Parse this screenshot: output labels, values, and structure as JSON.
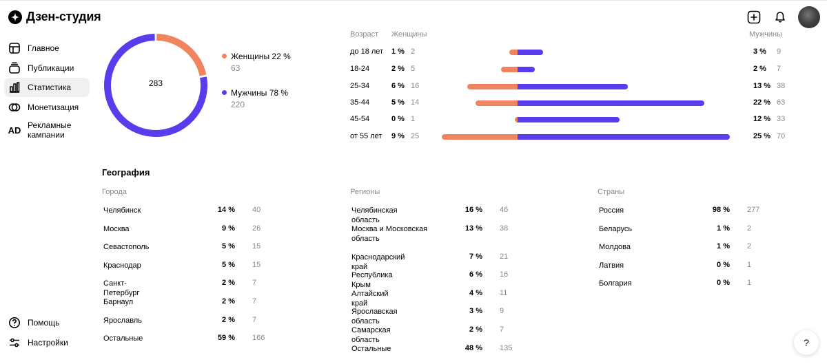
{
  "app": {
    "title": "Дзен-студия"
  },
  "sidebar": {
    "items": [
      {
        "label": "Главное",
        "icon": "home-icon"
      },
      {
        "label": "Публикации",
        "icon": "publications-icon"
      },
      {
        "label": "Статистика",
        "icon": "stats-icon",
        "active": true
      },
      {
        "label": "Монетизация",
        "icon": "monetization-icon"
      },
      {
        "label": "Рекламные кампании",
        "icon": "ad-icon",
        "icon_text": "AD"
      }
    ],
    "bottom": [
      {
        "label": "Помощь",
        "icon": "help-icon"
      },
      {
        "label": "Настройки",
        "icon": "settings-icon"
      }
    ]
  },
  "gender": {
    "total": "283",
    "women": {
      "label": "Женщины 22 %",
      "count": "63",
      "fraction": 0.22,
      "color": "#f0845e"
    },
    "men": {
      "label": "Мужчины 78 %",
      "count": "220",
      "fraction": 0.78,
      "color": "#5b3cec"
    }
  },
  "age": {
    "headers": {
      "age": "Возраст",
      "women": "Женщины",
      "men": "Мужчины"
    },
    "rows": [
      {
        "label": "до 18 лет",
        "w_pct": "1 %",
        "w_cnt": "2",
        "m_pct": "3 %",
        "m_cnt": "9",
        "w_val": 1,
        "m_val": 3
      },
      {
        "label": "18-24",
        "w_pct": "2 %",
        "w_cnt": "5",
        "m_pct": "2 %",
        "m_cnt": "7",
        "w_val": 2,
        "m_val": 2
      },
      {
        "label": "25-34",
        "w_pct": "6 %",
        "w_cnt": "16",
        "m_pct": "13 %",
        "m_cnt": "38",
        "w_val": 6,
        "m_val": 13
      },
      {
        "label": "35-44",
        "w_pct": "5 %",
        "w_cnt": "14",
        "m_pct": "22 %",
        "m_cnt": "63",
        "w_val": 5,
        "m_val": 22
      },
      {
        "label": "45-54",
        "w_pct": "0 %",
        "w_cnt": "1",
        "m_pct": "12 %",
        "m_cnt": "33",
        "w_val": 0.3,
        "m_val": 12
      },
      {
        "label": "от 55 лет",
        "w_pct": "9 %",
        "w_cnt": "25",
        "m_pct": "25 %",
        "m_cnt": "70",
        "w_val": 9,
        "m_val": 25
      }
    ]
  },
  "geography": {
    "title": "География",
    "cities": {
      "heading": "Города",
      "rows": [
        {
          "name": "Челябинск",
          "pct": "14 %",
          "cnt": "40"
        },
        {
          "name": "Москва",
          "pct": "9 %",
          "cnt": "26"
        },
        {
          "name": "Севастополь",
          "pct": "5 %",
          "cnt": "15"
        },
        {
          "name": "Краснодар",
          "pct": "5 %",
          "cnt": "15"
        },
        {
          "name": "Санкт-Петербург",
          "pct": "2 %",
          "cnt": "7"
        },
        {
          "name": "Барнаул",
          "pct": "2 %",
          "cnt": "7"
        },
        {
          "name": "Ярославль",
          "pct": "2 %",
          "cnt": "7"
        },
        {
          "name": "Остальные",
          "pct": "59 %",
          "cnt": "166"
        }
      ]
    },
    "regions": {
      "heading": "Регионы",
      "rows": [
        {
          "name": "Челябинская область",
          "pct": "16 %",
          "cnt": "46"
        },
        {
          "name": "Москва и Московская область",
          "pct": "13 %",
          "cnt": "38",
          "two_line": true
        },
        {
          "name": "Краснодарский край",
          "pct": "7 %",
          "cnt": "21"
        },
        {
          "name": "Республика Крым",
          "pct": "6 %",
          "cnt": "16"
        },
        {
          "name": "Алтайский край",
          "pct": "4 %",
          "cnt": "11"
        },
        {
          "name": "Ярославская область",
          "pct": "3 %",
          "cnt": "9"
        },
        {
          "name": "Самарская область",
          "pct": "2 %",
          "cnt": "7"
        },
        {
          "name": "Остальные",
          "pct": "48 %",
          "cnt": "135"
        }
      ]
    },
    "countries": {
      "heading": "Страны",
      "rows": [
        {
          "name": "Россия",
          "pct": "98 %",
          "cnt": "277"
        },
        {
          "name": "Беларусь",
          "pct": "1 %",
          "cnt": "2"
        },
        {
          "name": "Молдова",
          "pct": "1 %",
          "cnt": "2"
        },
        {
          "name": "Латвия",
          "pct": "0 %",
          "cnt": "1"
        },
        {
          "name": "Болгария",
          "pct": "0 %",
          "cnt": "1"
        }
      ]
    }
  },
  "help_button": {
    "label": "?"
  }
}
